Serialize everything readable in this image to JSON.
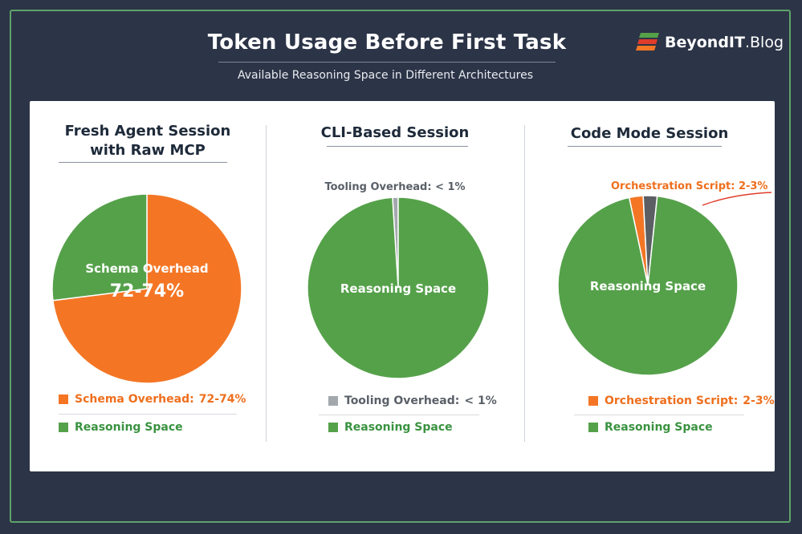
{
  "header": {
    "title": "Token Usage Before First Task",
    "subtitle": "Available Reasoning Space in Different Architectures"
  },
  "brand": {
    "name_bold": "BeyondIT",
    "name_rest": ".Blog",
    "icon": "stacked-bars-logo"
  },
  "colors": {
    "background": "#2c3447",
    "frame": "#5fa36a",
    "overhead": "#f47625",
    "reasoning": "#55a14a",
    "tooling": "#a3a8ad",
    "script_dark": "#5b5f63",
    "legend_text": "#3a9240",
    "overhead_text": "#ee6f1d"
  },
  "chart_data": [
    {
      "type": "pie",
      "title": "Fresh Agent Session with Raw MCP",
      "title_lines": [
        "Fresh Agent Session",
        "with Raw MCP"
      ],
      "slices": [
        {
          "label": "Schema Overhead",
          "value": 73,
          "display": "72-74%",
          "color": "#f47625"
        },
        {
          "label": "Reasoning Space",
          "value": 27,
          "color": "#55a14a"
        }
      ],
      "inner_label": {
        "line1": "Schema Overhead",
        "line2": "72-74%"
      },
      "legend": [
        {
          "label": "Schema Overhead:",
          "value": "72-74%",
          "color": "#f47625",
          "text_color": "#ee6f1d"
        },
        {
          "label": "Reasoning Space",
          "value": "",
          "color": "#55a14a",
          "text_color": "#3a9240"
        }
      ]
    },
    {
      "type": "pie",
      "title": "CLI-Based Session",
      "slices": [
        {
          "label": "Tooling Overhead",
          "value": 1,
          "display": "< 1%",
          "color": "#a3a8ad"
        },
        {
          "label": "Reasoning Space",
          "value": 99,
          "color": "#55a14a"
        }
      ],
      "inner_label": {
        "line1": "Reasoning Space"
      },
      "callout": "Tooling Overhead: < 1%",
      "legend": [
        {
          "label": "Tooling Overhead:",
          "value": "< 1%",
          "color": "#a3a8ad",
          "text_color": "#5a6068"
        },
        {
          "label": "Reasoning Space",
          "value": "",
          "color": "#55a14a",
          "text_color": "#3a9240"
        }
      ]
    },
    {
      "type": "pie",
      "title": "Code Mode Session",
      "slices": [
        {
          "label": "Orchestration Script",
          "value": 2.5,
          "display": "2-3%",
          "color": "#f47625"
        },
        {
          "label": "Orchestration Script (tooling)",
          "value": 2.5,
          "color": "#5b5f63"
        },
        {
          "label": "Reasoning Space",
          "value": 95,
          "color": "#55a14a"
        }
      ],
      "inner_label": {
        "line1": "Reasoning Space"
      },
      "callout": "Orchestration Script: 2-3%",
      "legend": [
        {
          "label": "Orchestration Script:",
          "value": "2-3%",
          "color": "#f47625",
          "text_color": "#ee6f1d"
        },
        {
          "label": "Reasoning Space",
          "value": "",
          "color": "#55a14a",
          "text_color": "#3a9240"
        }
      ]
    }
  ]
}
